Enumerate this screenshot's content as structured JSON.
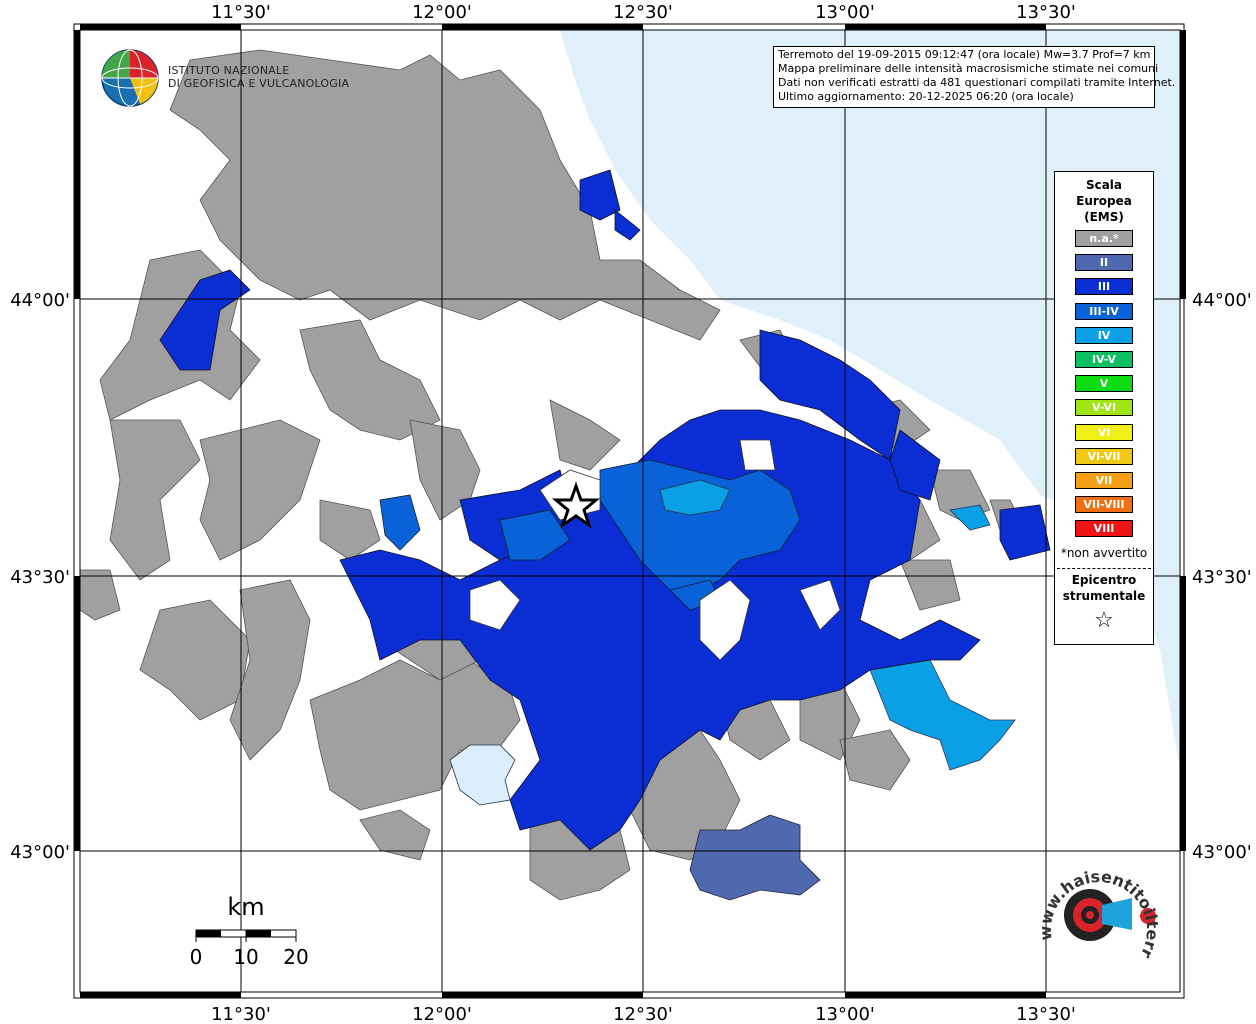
{
  "info": {
    "line1": "Terremoto del 19-09-2015 09:12:47 (ora locale) Mw=3.7 Prof=7 km",
    "line2": "Mappa preliminare delle intensità macrosismiche stimate nei comuni",
    "line3": "Dati non verificati estratti da 481 questionari compilati tramite Internet.",
    "line4": "Ultimo aggiornamento: 20-12-2025 06:20 (ora locale)"
  },
  "logo": {
    "line1": "ISTITUTO NAZIONALE",
    "line2": "DI GEOFISICA E VULCANOLOGIA"
  },
  "axes": {
    "top": [
      "11°30'",
      "12°00'",
      "12°30'",
      "13°00'",
      "13°30'"
    ],
    "bottom": [
      "11°30'",
      "12°00'",
      "12°30'",
      "13°00'",
      "13°30'"
    ],
    "left": [
      "44°00'",
      "43°30'",
      "43°00'"
    ],
    "right": [
      "44°00'",
      "43°30'",
      "43°00'"
    ]
  },
  "legend": {
    "title1": "Scala",
    "title2": "Europea",
    "title3": "(EMS)",
    "items": [
      {
        "label": "n.a.*",
        "color": "#a0a0a0"
      },
      {
        "label": "II",
        "color": "#4f69b1"
      },
      {
        "label": "III",
        "color": "#0a2ed4"
      },
      {
        "label": "III-IV",
        "color": "#0a62d8"
      },
      {
        "label": "IV",
        "color": "#0aa0e6"
      },
      {
        "label": "IV-V",
        "color": "#0bc060"
      },
      {
        "label": "V",
        "color": "#0adc14"
      },
      {
        "label": "V-VI",
        "color": "#9fe614"
      },
      {
        "label": "VI",
        "color": "#f0f014"
      },
      {
        "label": "VI-VII",
        "color": "#f0c814"
      },
      {
        "label": "VII",
        "color": "#f5a014"
      },
      {
        "label": "VII-VIII",
        "color": "#f06e14"
      },
      {
        "label": "VIII",
        "color": "#f01414"
      }
    ],
    "note": "*non avvertito",
    "epicenter1": "Epicentro",
    "epicenter2": "strumentale",
    "star": "☆"
  },
  "scale_bar": {
    "unit": "km",
    "labels": [
      "0",
      "10",
      "20"
    ]
  },
  "badge": {
    "text": "www.haisentitoilterremoto.it"
  },
  "colors": {
    "sea": "#dff0fb",
    "na": "#a0a0a0",
    "ii": "#4f69b1",
    "iii": "#0a2ed4",
    "iii_iv": "#0a62d8",
    "iv": "#0aa0e6",
    "pale": "#dceefb"
  }
}
